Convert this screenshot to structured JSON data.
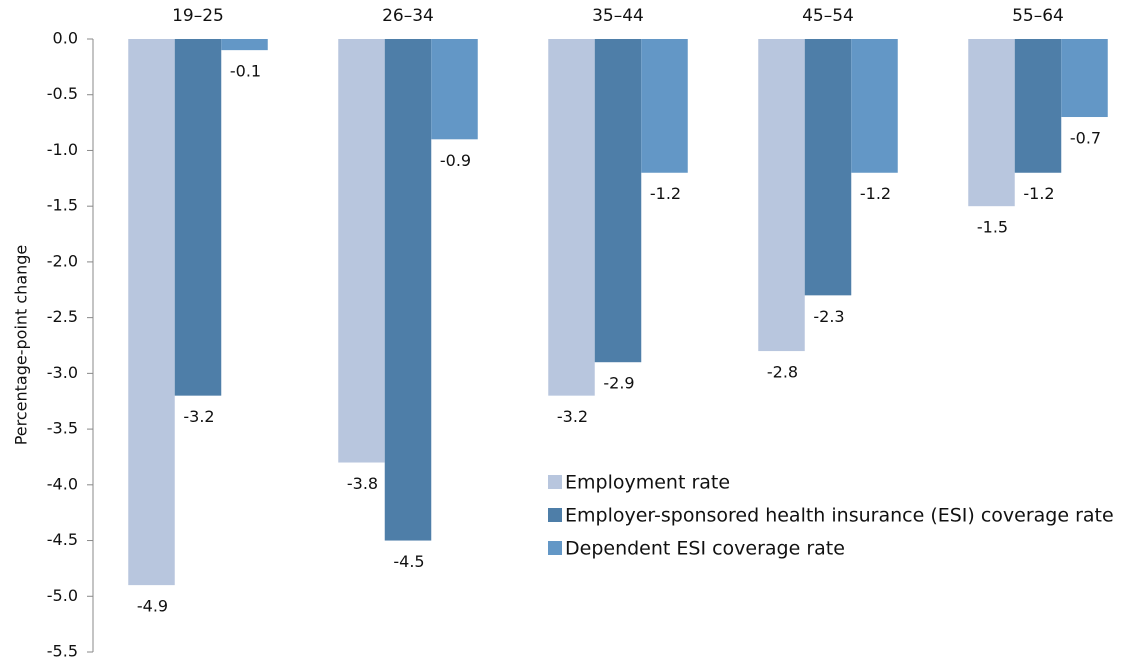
{
  "chart_data": {
    "type": "bar",
    "y_label": "Percentage-point change",
    "categories": [
      "19–25",
      "26–34",
      "35–44",
      "45–54",
      "55–64"
    ],
    "series": [
      {
        "name": "Employment rate",
        "color": "#b8c6de",
        "values": [
          -4.9,
          -3.8,
          -3.2,
          -2.8,
          -1.5
        ]
      },
      {
        "name": "Employer-sponsored health insurance (ESI) coverage rate",
        "color": "#4e7ea8",
        "values": [
          -3.2,
          -4.5,
          -2.9,
          -2.3,
          -1.2
        ]
      },
      {
        "name": "Dependent ESI coverage rate",
        "color": "#6397c6",
        "values": [
          -0.1,
          -0.9,
          -1.2,
          -1.2,
          -0.7
        ]
      }
    ],
    "ylim": [
      0,
      -5.5
    ],
    "yticks": [
      {
        "value": 0,
        "label": "0.0"
      },
      -0.5,
      {
        "value": -1,
        "label": "-1.0"
      },
      -1.5,
      {
        "value": -2,
        "label": "-2.0"
      },
      -2.5,
      {
        "value": -3,
        "label": "-3.0"
      },
      -3.5,
      {
        "value": -4,
        "label": "-4.0"
      },
      -4.5,
      {
        "value": -5,
        "label": "-5.0"
      },
      -5.5
    ]
  }
}
